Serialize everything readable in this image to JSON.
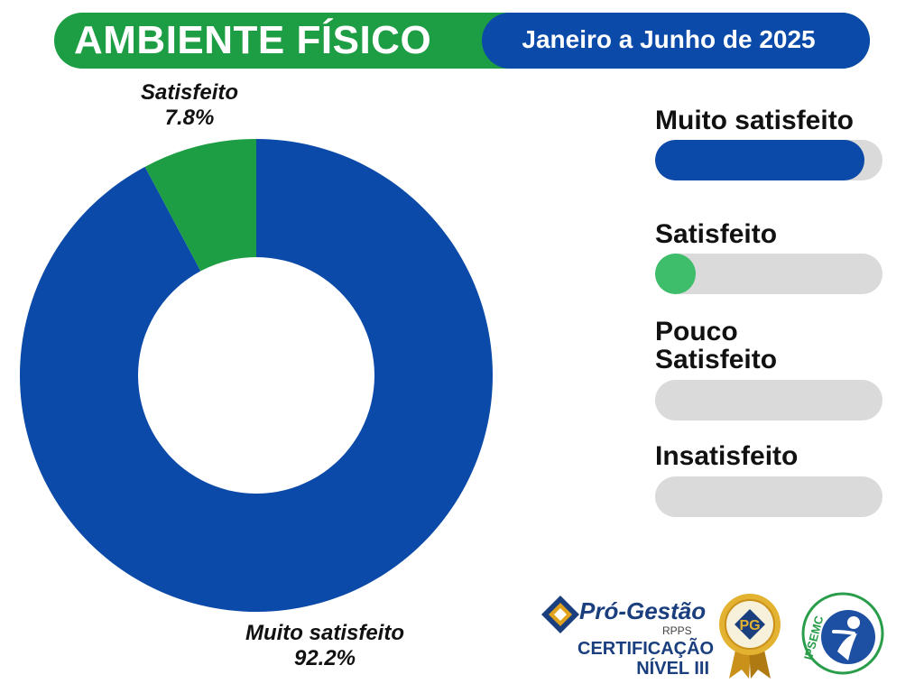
{
  "header": {
    "title": "AMBIENTE FÍSICO",
    "period": "Janeiro a Junho de 2025"
  },
  "chart_data": {
    "type": "pie",
    "donut": true,
    "title": "",
    "categories": [
      "Muito satisfeito",
      "Satisfeito"
    ],
    "values": [
      92.2,
      7.8
    ],
    "labels": [
      "92.2%",
      "7.8%"
    ],
    "colors": [
      "#0b4aa8",
      "#1e9e44"
    ]
  },
  "legend": {
    "items": [
      {
        "label": "Muito satisfeito",
        "value": 92.2,
        "color": "#0b4aa8"
      },
      {
        "label": "Satisfeito",
        "value": 7.8,
        "color": "#3ebd6a"
      },
      {
        "label": "Pouco Satisfeito",
        "value": 0,
        "color": "#3ebd6a"
      },
      {
        "label": "Insatisfeito",
        "value": 0,
        "color": "#3ebd6a"
      }
    ]
  },
  "logos": {
    "progestao": "Pró-Gestão",
    "rpps": "RPPS",
    "certificacao": "CERTIFICAÇÃO",
    "nivel": "NÍVEL III",
    "seal_letters": "PG",
    "ipsemc": "IPSEMC",
    "colors": {
      "progestao_blue": "#1b3f7e",
      "seal_gold": "#d4a017",
      "ipsemc_green": "#2a9d4a",
      "ipsemc_blue": "#1d4fa3"
    }
  }
}
